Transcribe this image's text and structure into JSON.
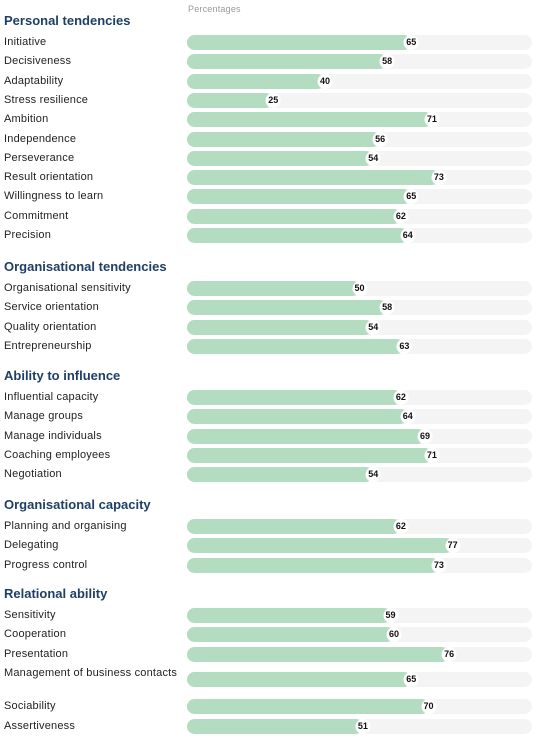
{
  "chart_data": {
    "type": "bar",
    "orientation": "horizontal",
    "axis_title": "Percentages",
    "xlim": [
      0,
      100
    ],
    "groups": [
      {
        "title": "Personal tendencies",
        "items": [
          {
            "label": "Initiative",
            "value": 65
          },
          {
            "label": "Decisiveness",
            "value": 58
          },
          {
            "label": "Adaptability",
            "value": 40
          },
          {
            "label": "Stress resilience",
            "value": 25
          },
          {
            "label": "Ambition",
            "value": 71
          },
          {
            "label": "Independence",
            "value": 56
          },
          {
            "label": "Perseverance",
            "value": 54
          },
          {
            "label": "Result orientation",
            "value": 73
          },
          {
            "label": "Willingness to learn",
            "value": 65
          },
          {
            "label": "Commitment",
            "value": 62
          },
          {
            "label": "Precision",
            "value": 64
          }
        ]
      },
      {
        "title": "Organisational tendencies",
        "items": [
          {
            "label": "Organisational sensitivity",
            "value": 50
          },
          {
            "label": "Service orientation",
            "value": 58
          },
          {
            "label": "Quality orientation",
            "value": 54
          },
          {
            "label": "Entrepreneurship",
            "value": 63
          }
        ]
      },
      {
        "title": "Ability to influence",
        "items": [
          {
            "label": "Influential capacity",
            "value": 62
          },
          {
            "label": "Manage groups",
            "value": 64
          },
          {
            "label": "Manage individuals",
            "value": 69
          },
          {
            "label": "Coaching employees",
            "value": 71
          },
          {
            "label": "Negotiation",
            "value": 54
          }
        ]
      },
      {
        "title": "Organisational capacity",
        "items": [
          {
            "label": "Planning and organising",
            "value": 62
          },
          {
            "label": "Delegating",
            "value": 77
          },
          {
            "label": "Progress control",
            "value": 73
          }
        ]
      },
      {
        "title": "Relational ability",
        "items": [
          {
            "label": "Sensitivity",
            "value": 59
          },
          {
            "label": "Cooperation",
            "value": 60
          },
          {
            "label": "Presentation",
            "value": 76
          },
          {
            "label": "Management of business contacts",
            "value": 65
          },
          {
            "label": "Sociability",
            "value": 70
          },
          {
            "label": "Assertiveness",
            "value": 51
          }
        ]
      }
    ],
    "colors": {
      "fill": "#b3dcc1",
      "track": "#f4f4f4",
      "heading": "#1f3f66"
    }
  }
}
